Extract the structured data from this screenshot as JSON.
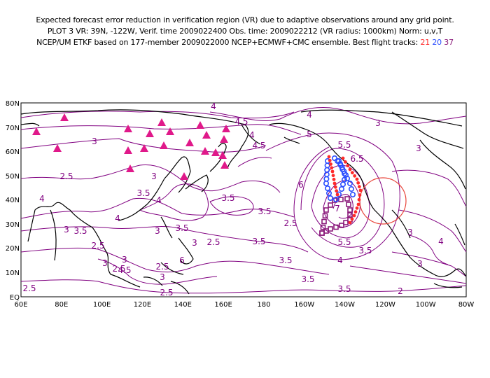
{
  "header": {
    "line1": "Expected forecast error reduction in verification region (VR) due to adaptive observations around any grid point.",
    "line2": "PLOT 3 VR: 39N, -122W, Verif. time 2009022400 Obs. time: 2009022212 (VR radius: 1000km) Norm: u,v,T",
    "line3_prefix": "NCEP/UM ETKF based on 177-member 2009022000 NCEP+ECMWF+CMC ensemble. Best flight tracks: ",
    "tracks": [
      {
        "label": "21",
        "color": "#ff2a2a"
      },
      {
        "label": "20",
        "color": "#2a4cff"
      },
      {
        "label": "37",
        "color": "#8a1a7a"
      }
    ]
  },
  "map": {
    "lat_labels": [
      "80N",
      "70N",
      "60N",
      "50N",
      "40N",
      "30N",
      "20N",
      "10N",
      "EQ"
    ],
    "lon_labels": [
      "60E",
      "80E",
      "100E",
      "120E",
      "140E",
      "160E",
      "180",
      "160W",
      "140W",
      "120W",
      "100W",
      "80W"
    ],
    "contour_labels": [
      "4",
      "4",
      "4.5",
      "3",
      "4",
      "5",
      "3",
      "3",
      "4.5",
      "5.5",
      "6.5",
      "2.5",
      "3",
      "6",
      "4",
      "3.5",
      "3.5",
      "3.5",
      "3.5",
      "4",
      "4",
      "3",
      "3.5",
      "7",
      "3",
      "2.5",
      "5.5",
      "3",
      "2.5",
      "3.5",
      "2.5",
      "3",
      "6",
      "3",
      "2.5",
      "3",
      "3.5",
      "4",
      "3.5",
      "4",
      "4.5",
      "3",
      "3.5",
      "2.5",
      "3",
      "2.5",
      "2.5",
      "3.5",
      "2"
    ],
    "verification_region": {
      "lat": 39,
      "lon": -122,
      "radius_km": 1000
    },
    "colors": {
      "contour": "#800080",
      "coast": "#000000",
      "triangle": "#e0198a",
      "vr_circle": "#e8463c"
    }
  }
}
